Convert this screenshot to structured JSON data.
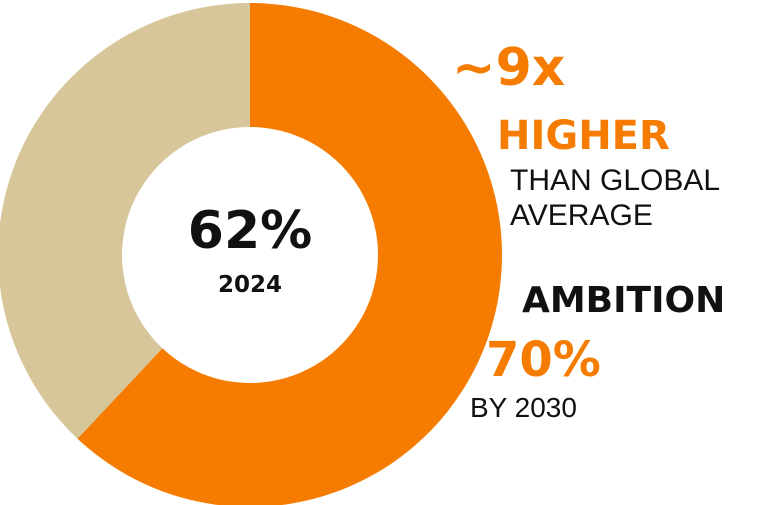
{
  "chart_data": {
    "type": "pie",
    "donut": true,
    "slices": [
      {
        "value": 62,
        "color": "#f57c00"
      },
      {
        "value": 38,
        "color": "#d6c69a"
      }
    ],
    "center_value": "62%",
    "center_label": "2024"
  },
  "callouts": {
    "multiplier": "~9x",
    "higher": "HIGHER",
    "than_line1": "THAN GLOBAL",
    "than_line2": "AVERAGE",
    "ambition": "AMBITION",
    "target_value": "70%",
    "target_year": "BY 2030"
  }
}
